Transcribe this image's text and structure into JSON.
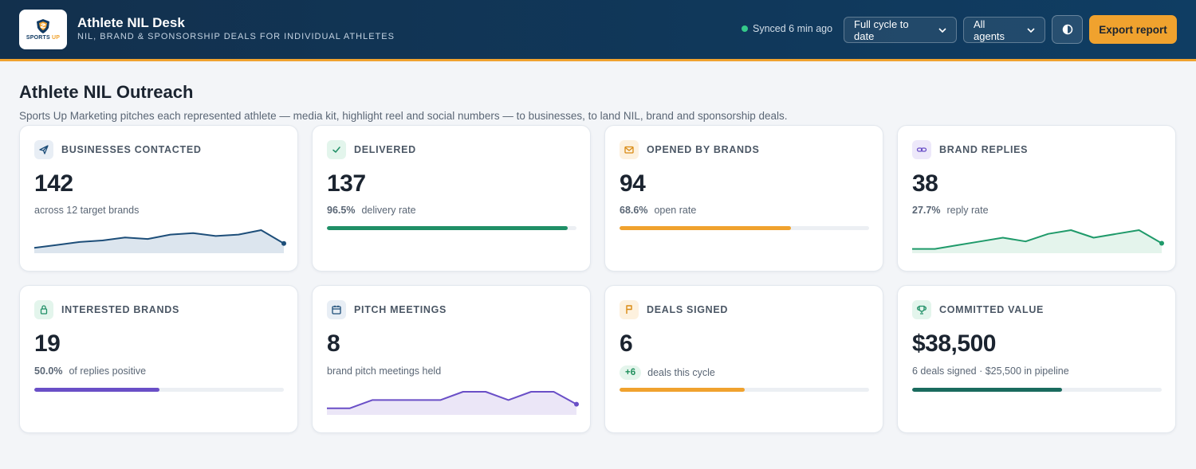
{
  "header": {
    "logo_text_main": "SPORTS",
    "logo_text_accent": "UP",
    "title": "Athlete NIL Desk",
    "subtitle": "NIL, BRAND & SPONSORSHIP DEALS FOR INDIVIDUAL ATHLETES",
    "sync_status": "Synced 6 min ago",
    "cycle_filter": "Full cycle to date",
    "agent_filter": "All agents",
    "export_label": "Export report"
  },
  "page": {
    "title": "Athlete NIL Outreach",
    "description": "Sports Up Marketing pitches each represented athlete — media kit, highlight reel and social numbers — to businesses, to land NIL, brand and sponsorship deals."
  },
  "cards": [
    {
      "label": "Businesses Contacted",
      "value": "142",
      "sub_text": "across 12 target brands",
      "icon": "send-icon",
      "visual": "sparkline",
      "color": "#1d4e79",
      "fill": "#dce5ee",
      "trend": [
        2,
        4,
        6,
        7,
        9,
        8,
        11,
        12,
        10,
        11,
        14,
        5
      ]
    },
    {
      "label": "Delivered",
      "value": "137",
      "sub_pct": "96.5%",
      "sub_text": "delivery rate",
      "icon": "check-icon",
      "visual": "bar",
      "progress": 0.965,
      "color": "#1f8f66"
    },
    {
      "label": "Opened by Brands",
      "value": "94",
      "sub_pct": "68.6%",
      "sub_text": "open rate",
      "icon": "mail-icon",
      "visual": "bar",
      "progress": 0.686,
      "color": "#f0a22e"
    },
    {
      "label": "Brand Replies",
      "value": "38",
      "sub_pct": "27.7%",
      "sub_text": "reply rate",
      "icon": "link-icon",
      "visual": "sparkline",
      "color": "#1f9a6a",
      "fill": "#e4f4ec",
      "trend": [
        1,
        1,
        3,
        5,
        7,
        5,
        9,
        11,
        7,
        9,
        11,
        4
      ]
    },
    {
      "label": "Interested Brands",
      "value": "19",
      "sub_pct": "50.0%",
      "sub_text": "of replies positive",
      "icon": "bag-icon",
      "visual": "bar",
      "progress": 0.5,
      "color": "#6a4fc7"
    },
    {
      "label": "Pitch Meetings",
      "value": "8",
      "sub_text": "brand pitch meetings held",
      "icon": "calendar-icon",
      "visual": "sparkline",
      "color": "#6a4fc7",
      "fill": "#ebe6f7",
      "trend": [
        1,
        1,
        3,
        3,
        3,
        3,
        5,
        5,
        3,
        5,
        5,
        2
      ]
    },
    {
      "label": "Deals Signed",
      "value": "6",
      "badge": "+6",
      "sub_text": "deals this cycle",
      "icon": "flag-icon",
      "visual": "bar",
      "progress": 0.5,
      "color": "#f0a22e"
    },
    {
      "label": "Committed Value",
      "value": "$38,500",
      "sub_text": "6 deals signed · $25,500 in pipeline",
      "icon": "trophy-icon",
      "visual": "bar",
      "progress": 0.6,
      "color": "#1a6b5e"
    }
  ],
  "icon_colors": {
    "send-icon": {
      "bg": "#e8eef5",
      "fg": "#1d4e79"
    },
    "check-icon": {
      "bg": "#e3f5ec",
      "fg": "#1f8f66"
    },
    "mail-icon": {
      "bg": "#fdf1de",
      "fg": "#d98a12"
    },
    "link-icon": {
      "bg": "#ede8fa",
      "fg": "#6a4fc7"
    },
    "bag-icon": {
      "bg": "#e3f5ec",
      "fg": "#1f8f66"
    },
    "calendar-icon": {
      "bg": "#e8eef5",
      "fg": "#1d4e79"
    },
    "flag-icon": {
      "bg": "#fdf1de",
      "fg": "#d98a12"
    },
    "trophy-icon": {
      "bg": "#e3f5ec",
      "fg": "#1f8f66"
    }
  }
}
